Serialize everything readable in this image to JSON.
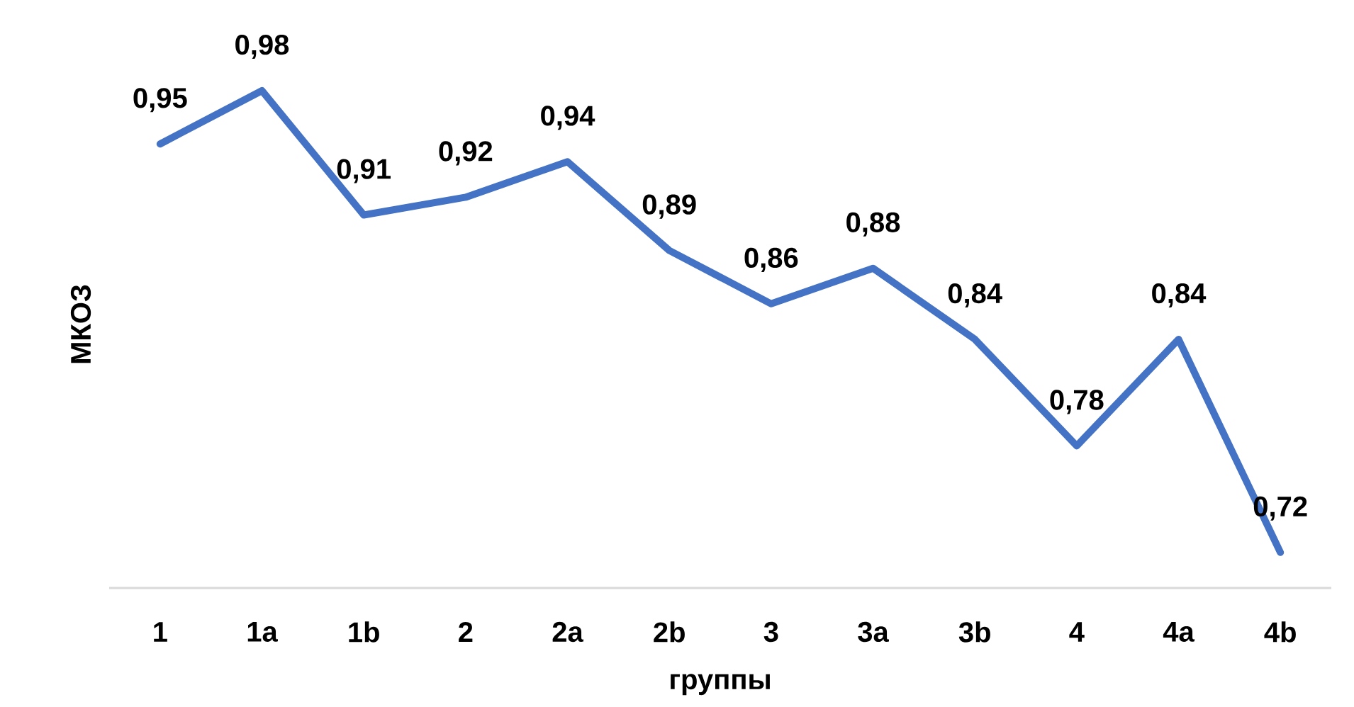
{
  "chart_data": {
    "type": "line",
    "xlabel": "группы",
    "ylabel": "МКОЗ",
    "categories": [
      "1",
      "1a",
      "1b",
      "2",
      "2a",
      "2b",
      "3",
      "3a",
      "3b",
      "4",
      "4a",
      "4b"
    ],
    "values": [
      0.95,
      0.98,
      0.91,
      0.92,
      0.94,
      0.89,
      0.86,
      0.88,
      0.84,
      0.78,
      0.84,
      0.72
    ],
    "value_labels": [
      "0,95",
      "0,98",
      "0,91",
      "0,92",
      "0,94",
      "0,89",
      "0,86",
      "0,88",
      "0,84",
      "0,78",
      "0,84",
      "0,72"
    ],
    "color": "#4472c4",
    "line_style": "solid",
    "tick_labels": "x"
  }
}
